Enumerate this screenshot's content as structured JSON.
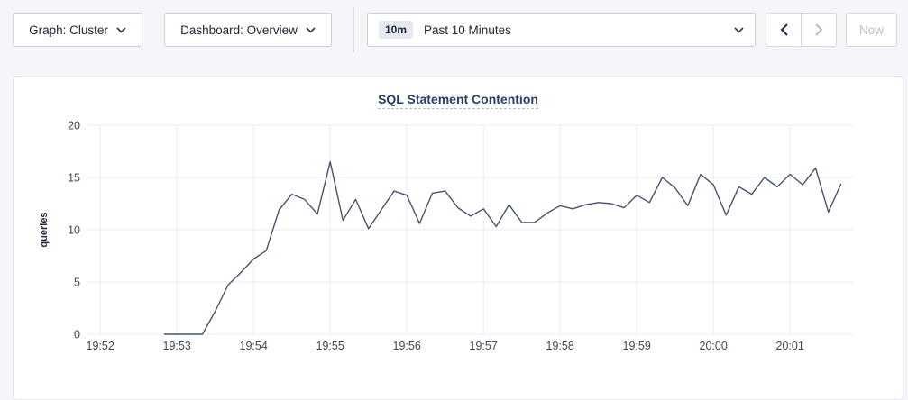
{
  "toolbar": {
    "graph_dropdown": {
      "label": "Graph: Cluster"
    },
    "dashboard_dropdown": {
      "label": "Dashboard: Overview"
    },
    "time_picker": {
      "badge": "10m",
      "label": "Past 10 Minutes"
    },
    "now_button": {
      "label": "Now"
    }
  },
  "colors": {
    "page_background": "#f4f6f9",
    "card_background": "#ffffff",
    "primary_text": "#1f2534",
    "disabled_text": "#b7becb",
    "title_text": "#2b3c68",
    "accent_navy": "#26365c"
  },
  "chart_data": {
    "type": "line",
    "title": "SQL Statement Contention",
    "xlabel": "",
    "ylabel": "queries",
    "ylim": [
      0,
      20
    ],
    "yticks": [
      0,
      5,
      10,
      15,
      20
    ],
    "xticks": [
      "19:52",
      "19:53",
      "19:54",
      "19:55",
      "19:56",
      "19:57",
      "19:58",
      "19:59",
      "20:00",
      "20:01"
    ],
    "x_domain": [
      "19:51:50",
      "20:01:50"
    ],
    "grid": "on",
    "grid_color": "#e9ebf0",
    "legend": "none",
    "series": [
      {
        "name": "queries",
        "color": "#47536e",
        "x": [
          "19:52:50",
          "19:53:00",
          "19:53:10",
          "19:53:20",
          "19:53:30",
          "19:53:40",
          "19:53:50",
          "19:54:00",
          "19:54:10",
          "19:54:20",
          "19:54:30",
          "19:54:40",
          "19:54:50",
          "19:55:00",
          "19:55:10",
          "19:55:20",
          "19:55:30",
          "19:55:40",
          "19:55:50",
          "19:56:00",
          "19:56:10",
          "19:56:20",
          "19:56:30",
          "19:56:40",
          "19:56:50",
          "19:57:00",
          "19:57:10",
          "19:57:20",
          "19:57:30",
          "19:57:40",
          "19:57:50",
          "19:58:00",
          "19:58:10",
          "19:58:20",
          "19:58:30",
          "19:58:40",
          "19:58:50",
          "19:59:00",
          "19:59:10",
          "19:59:20",
          "19:59:30",
          "19:59:40",
          "19:59:50",
          "20:00:00",
          "20:00:10",
          "20:00:20",
          "20:00:30",
          "20:00:40",
          "20:00:50",
          "20:01:00",
          "20:01:10",
          "20:01:20",
          "20:01:30",
          "20:01:40"
        ],
        "values": [
          0,
          0,
          0,
          0,
          2.2,
          4.7,
          5.9,
          7.2,
          8.0,
          11.9,
          13.4,
          12.9,
          11.5,
          16.5,
          10.9,
          12.9,
          10.1,
          11.9,
          13.7,
          13.3,
          10.6,
          13.5,
          13.7,
          12.1,
          11.3,
          12.0,
          10.3,
          12.4,
          10.7,
          10.7,
          11.6,
          12.3,
          12.0,
          12.4,
          12.6,
          12.5,
          12.1,
          13.3,
          12.6,
          15.0,
          14.0,
          12.3,
          15.3,
          14.3,
          11.4,
          14.1,
          13.4,
          15.0,
          14.1,
          15.3,
          14.3,
          15.9,
          11.7,
          14.4
        ]
      }
    ]
  }
}
